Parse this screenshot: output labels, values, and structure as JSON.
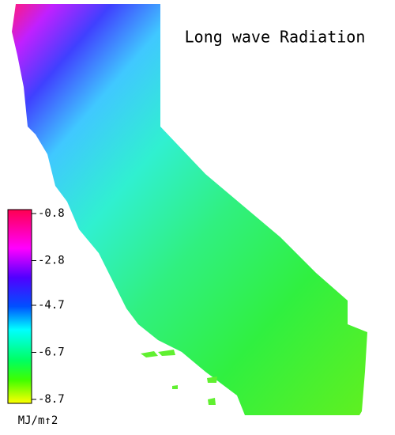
{
  "title": "Long wave Radiation",
  "colorbar": {
    "label": "MJ/m↑2",
    "lim": [
      -8.7,
      -0.8
    ],
    "ticks": [
      -0.8,
      -2.8,
      -4.7,
      -6.7,
      -8.7
    ]
  }
}
